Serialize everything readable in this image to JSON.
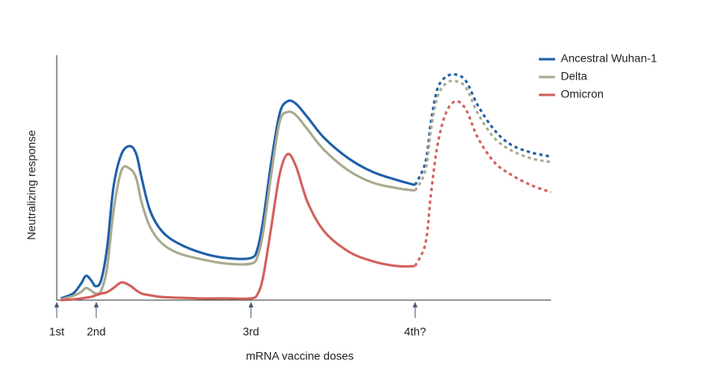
{
  "chart_data": {
    "type": "line",
    "x_label": "mRNA vaccine doses",
    "y_label": "Neutralizing response",
    "xlim": [
      0,
      100
    ],
    "ylim": [
      0,
      100
    ],
    "legend": "upper right",
    "x": [
      0.8,
      3.3,
      4.9,
      5.9,
      6.9,
      7.9,
      9.0,
      10.2,
      11.5,
      13.1,
      14.8,
      16.1,
      17.2,
      18.9,
      21.3,
      24.6,
      29.5,
      34.4,
      39.3,
      40.7,
      41.8,
      43.4,
      45.1,
      46.7,
      48.4,
      50.8,
      54.1,
      59.0,
      63.9,
      68.9,
      72.5,
      74.6,
      75.7,
      77.0,
      78.7,
      80.7,
      82.8,
      85.2,
      88.5,
      91.8,
      95.9,
      100
    ],
    "series": [
      {
        "name": "Ancestral Wuhan-1",
        "color": "#1f5fa8",
        "values": [
          0.7,
          2.7,
          6.7,
          10,
          8.3,
          5.7,
          8.3,
          21.7,
          46.7,
          60,
          63.3,
          60,
          50,
          36.7,
          28.3,
          23.3,
          19.3,
          17.3,
          17.3,
          21.7,
          33.3,
          56.7,
          76.7,
          81.7,
          80.7,
          75,
          66.7,
          58.3,
          52.7,
          49.3,
          47.3,
          56.7,
          73.3,
          86.7,
          91.7,
          92.7,
          90,
          80,
          70,
          64,
          60.7,
          59
        ]
      },
      {
        "name": "Delta",
        "color": "#a9a98f",
        "values": [
          0.3,
          1.7,
          3.3,
          5,
          4,
          2.7,
          4,
          13.3,
          36.7,
          53.3,
          54,
          50,
          40,
          30,
          23.3,
          19.3,
          16.7,
          15,
          15,
          18.3,
          28.3,
          51.7,
          73.3,
          77.3,
          76,
          70,
          61.7,
          53.3,
          48.3,
          46,
          45,
          53.3,
          70,
          83.3,
          89,
          90,
          87.3,
          76.7,
          66.7,
          61.7,
          58.3,
          56.7
        ]
      },
      {
        "name": "Omicron",
        "color": "#d2605c",
        "values": [
          0,
          0.3,
          0.7,
          1,
          1.3,
          2,
          2.7,
          3.3,
          5,
          7.3,
          6,
          4,
          2.7,
          2,
          1.3,
          1,
          0.7,
          0.7,
          0.7,
          2.7,
          10,
          30,
          51.7,
          60,
          55,
          40,
          28.3,
          20,
          16,
          14,
          14,
          23.3,
          43.3,
          63.3,
          76.7,
          81.7,
          78.3,
          66.7,
          56.7,
          51.7,
          47.3,
          44.3
        ]
      }
    ],
    "doses": [
      {
        "label": "1st",
        "x": 0
      },
      {
        "label": "2nd",
        "x": 8
      },
      {
        "label": "3rd",
        "x": 39.3
      },
      {
        "label": "4th?",
        "x": 72.5
      }
    ]
  }
}
